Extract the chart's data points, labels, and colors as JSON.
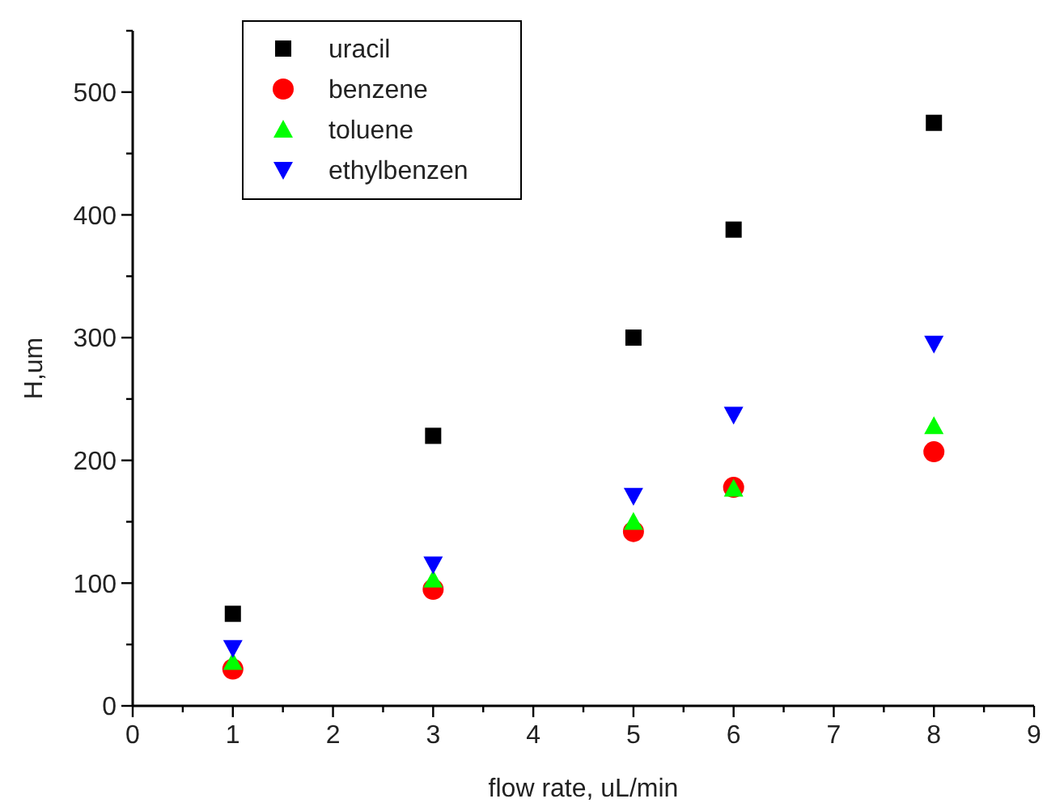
{
  "chart_data": {
    "type": "scatter",
    "xlabel": "flow rate, uL/min",
    "ylabel": "H,um",
    "x": [
      1,
      3,
      5,
      6,
      8
    ],
    "xlim": [
      0,
      9
    ],
    "ylim": [
      0,
      550
    ],
    "xticks": [
      0,
      {
        "value": 0.5,
        "label": null
      },
      1,
      {
        "value": 1.5,
        "label": null
      },
      2,
      {
        "value": 2.5,
        "label": null
      },
      3,
      {
        "value": 3.5,
        "label": null
      },
      4,
      {
        "value": 4.5,
        "label": null
      },
      5,
      {
        "value": 5.5,
        "label": null
      },
      6,
      {
        "value": 6.5,
        "label": null
      },
      7,
      {
        "value": 7.5,
        "label": null
      },
      8,
      {
        "value": 8.5,
        "label": null
      },
      9
    ],
    "yticks": [
      0,
      {
        "value": 50,
        "label": null
      },
      100,
      {
        "value": 150,
        "label": null
      },
      200,
      {
        "value": 250,
        "label": null
      },
      300,
      {
        "value": 350,
        "label": null
      },
      400,
      {
        "value": 450,
        "label": null
      },
      500,
      {
        "value": 550,
        "label": null
      }
    ],
    "grid": false,
    "legend": "top left",
    "series": [
      {
        "name": "uracil",
        "color": "#000000",
        "marker": "square",
        "values": [
          75,
          220,
          300,
          388,
          475
        ]
      },
      {
        "name": "benzene",
        "color": "#ff0000",
        "marker": "circle",
        "values": [
          30,
          95,
          142,
          178,
          207
        ]
      },
      {
        "name": "toluene",
        "color": "#00ff00",
        "marker": "triangle",
        "values": [
          36,
          103,
          150,
          177,
          228
        ]
      },
      {
        "name": "ethylbenzen",
        "color": "#0000ff",
        "marker": "triangle-down",
        "values": [
          47,
          115,
          171,
          237,
          295
        ]
      }
    ]
  }
}
